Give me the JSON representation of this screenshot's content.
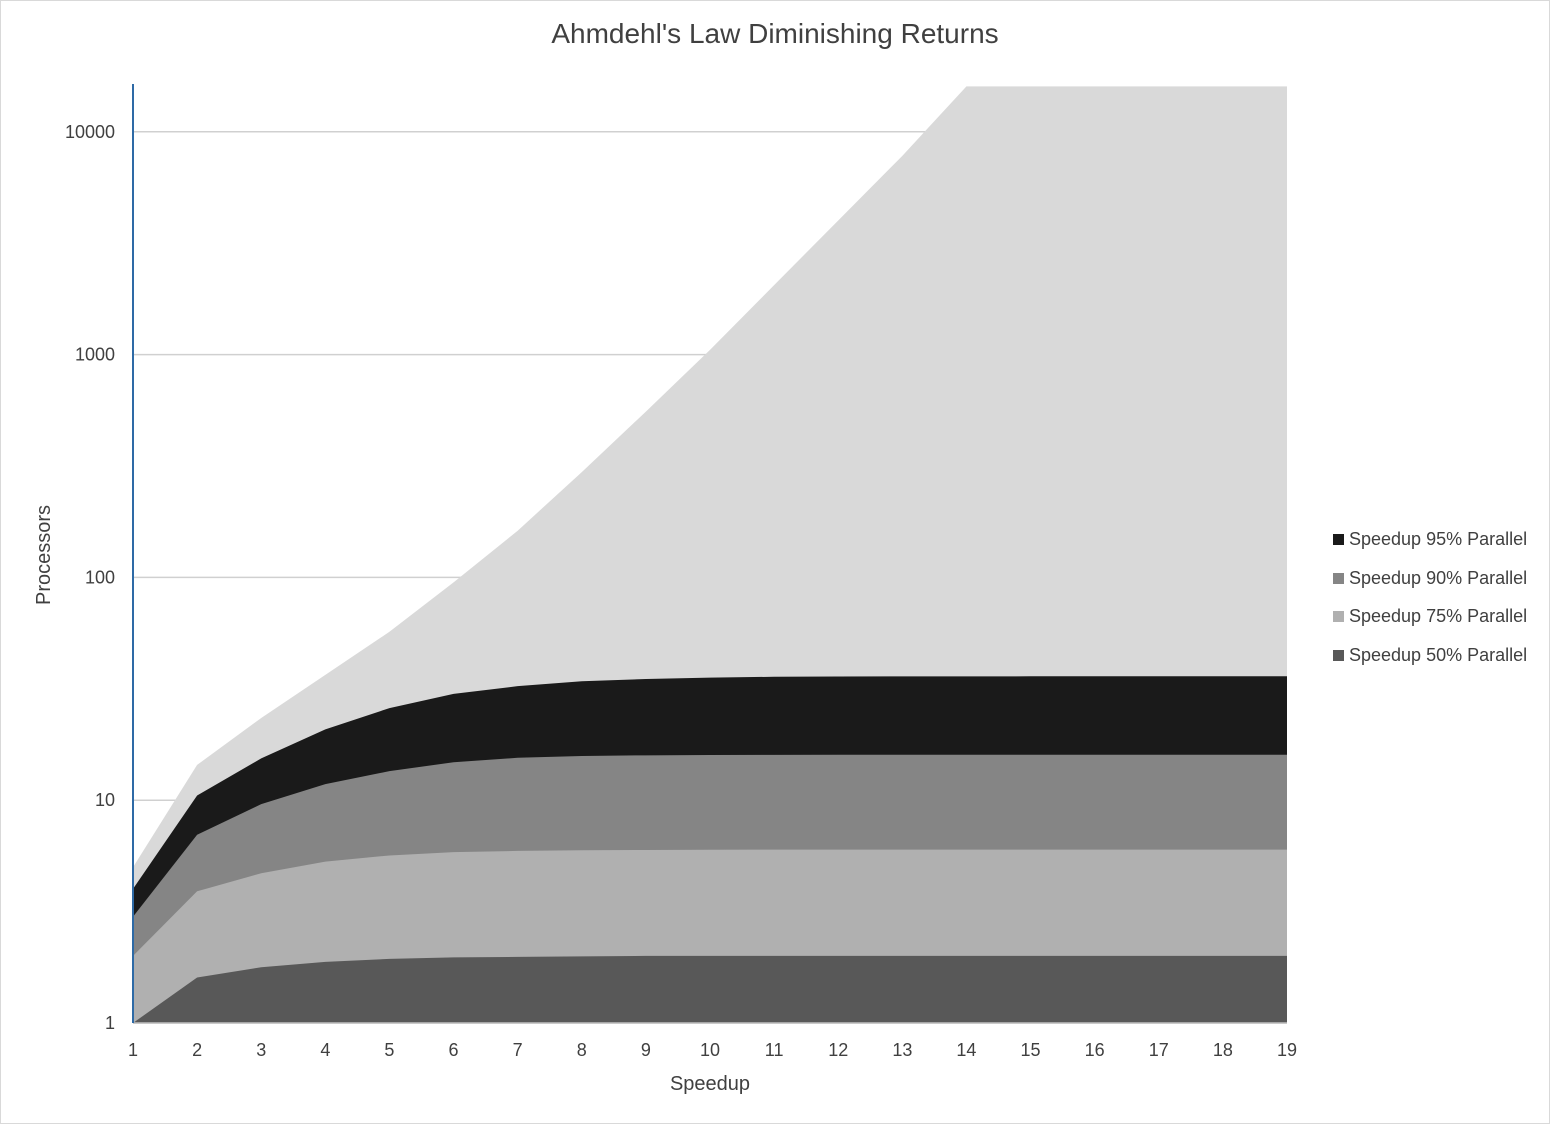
{
  "chart_data": {
    "type": "area",
    "title": "Ahmdehl's Law Diminishing Returns",
    "xlabel": "Speedup",
    "ylabel": "Processors",
    "y_scale": "log",
    "ylim": [
      1,
      16000
    ],
    "xlim": [
      1,
      19
    ],
    "grid": "horizontal major",
    "legend_position": "right",
    "x": [
      1,
      2,
      3,
      4,
      5,
      6,
      7,
      8,
      9,
      10,
      11,
      12,
      13,
      14,
      15,
      16,
      17,
      18,
      19
    ],
    "y_ticks": [
      "10000",
      "1000",
      "100",
      "10",
      "1"
    ],
    "series": [
      {
        "name": "Speedup 95% Parallel",
        "color": "#1a1a1a",
        "values": [
          4,
          10.5,
          15.4,
          20.8,
          25.9,
          30,
          32.5,
          34.2,
          35,
          35.5,
          35.8,
          35.9,
          35.95,
          35.97,
          35.98,
          35.99,
          36,
          36,
          36
        ]
      },
      {
        "name": "Speedup 90% Parallel",
        "color": "#858585",
        "values": [
          3,
          7,
          9.6,
          11.8,
          13.5,
          14.8,
          15.5,
          15.8,
          15.9,
          15.95,
          15.98,
          16,
          16,
          16,
          16,
          16,
          16,
          16,
          16
        ]
      },
      {
        "name": "Speedup 75% Parallel",
        "color": "#b0b0b0",
        "values": [
          2,
          3.9,
          4.7,
          5.3,
          5.65,
          5.85,
          5.92,
          5.96,
          5.98,
          5.99,
          6,
          6,
          6,
          6,
          6,
          6,
          6,
          6,
          6
        ]
      },
      {
        "name": "Speedup 50% Parallel",
        "color": "#585858",
        "values": [
          1,
          1.6,
          1.78,
          1.88,
          1.94,
          1.97,
          1.98,
          1.99,
          2,
          2,
          2,
          2,
          2,
          2,
          2,
          2,
          2,
          2,
          2
        ]
      }
    ],
    "background_area": {
      "color": "#d9d9d9",
      "values": [
        5,
        14.4,
        23.4,
        36.5,
        57,
        95,
        162,
        297,
        555,
        1050,
        2050,
        4000,
        7800,
        16000,
        16000,
        16000,
        16000,
        16000,
        16000
      ]
    }
  }
}
